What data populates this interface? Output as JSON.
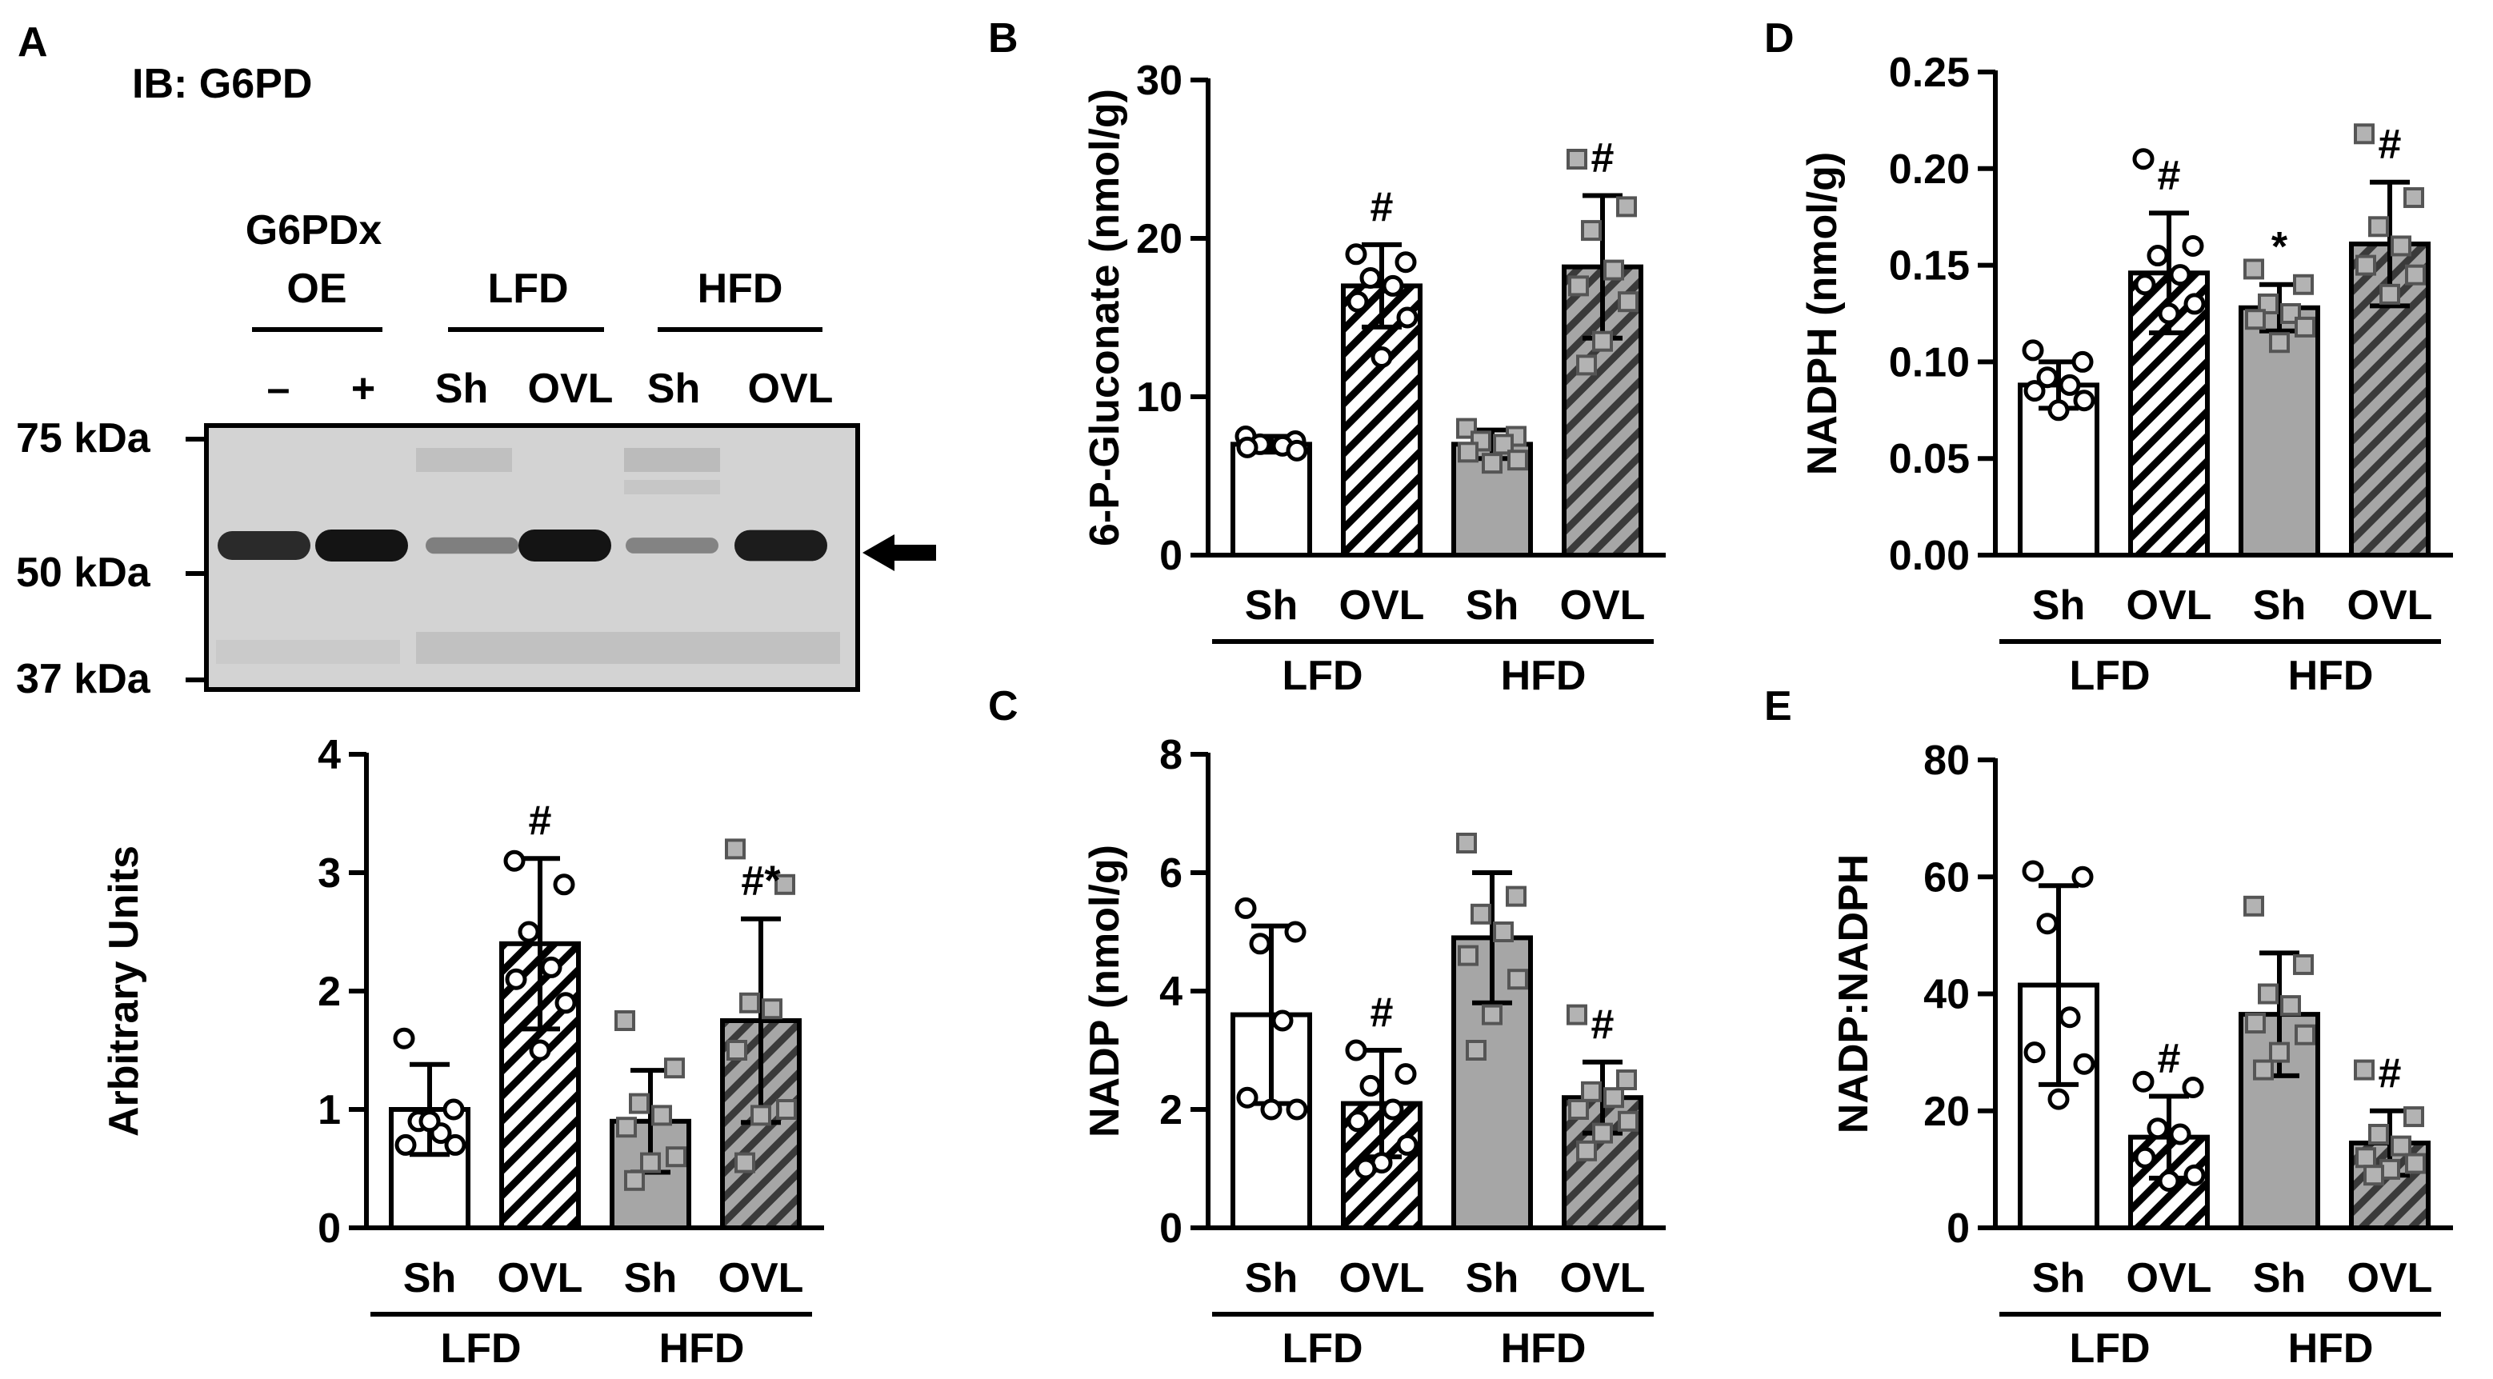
{
  "colors": {
    "ink": "#000000",
    "white_bar": "#ffffff",
    "gray_bar": "#a6a6a6",
    "gray_marker": "#b3b3b3",
    "blot_background": "#d3d3d3",
    "blot_band": "#141414"
  },
  "panel_a": {
    "label": "A",
    "blot_title": "IB: G6PD",
    "oe_header_line1": "G6PDx",
    "oe_header_line2": "OE",
    "lane_groups": [
      "LFD",
      "HFD"
    ],
    "lane_labels": [
      "–",
      "+",
      "Sh",
      "OVL",
      "Sh",
      "OVL"
    ],
    "ladder": [
      "75 kDa",
      "50 kDa",
      "37 kDa"
    ],
    "target_band_arrow": "arrow-icon",
    "band_intensity": [
      0.85,
      1.0,
      0.25,
      1.0,
      0.22,
      0.95
    ]
  },
  "chart_data": [
    {
      "panel": "A",
      "type": "bar",
      "ylabel": "Arbitrary Units",
      "ylim": [
        0,
        4
      ],
      "yticks": [
        "0",
        "1",
        "2",
        "3",
        "4"
      ],
      "categories": [
        "Sh",
        "OVL",
        "Sh",
        "OVL"
      ],
      "groups": [
        "LFD",
        "HFD"
      ],
      "values": [
        1.0,
        2.4,
        0.9,
        1.75
      ],
      "sd": [
        0.38,
        0.72,
        0.43,
        0.86
      ],
      "annotations": [
        "",
        "#",
        "",
        "#*"
      ],
      "points": [
        [
          1.6,
          1.0,
          0.9,
          0.8,
          0.7,
          0.7,
          0.9
        ],
        [
          3.1,
          2.9,
          2.5,
          2.2,
          2.1,
          1.9,
          1.5
        ],
        [
          1.75,
          1.35,
          1.05,
          0.95,
          0.85,
          0.6,
          0.55,
          0.4
        ],
        [
          3.2,
          2.9,
          1.9,
          1.85,
          1.5,
          1.0,
          0.95,
          0.55
        ]
      ]
    },
    {
      "panel": "B",
      "type": "bar",
      "ylabel": "6-P-Gluconate (nmol/g)",
      "ylim": [
        0,
        30
      ],
      "yticks": [
        "0",
        "10",
        "20",
        "30"
      ],
      "categories": [
        "Sh",
        "OVL",
        "Sh",
        "OVL"
      ],
      "groups": [
        "LFD",
        "HFD"
      ],
      "values": [
        7.0,
        17.0,
        7.0,
        18.2
      ],
      "sd": [
        0.5,
        2.6,
        0.9,
        4.5
      ],
      "annotations": [
        "",
        "#",
        "",
        "#"
      ],
      "points": [
        [
          7.5,
          7.2,
          7.0,
          6.9,
          6.8,
          6.6
        ],
        [
          19.0,
          18.5,
          17.5,
          17.0,
          16.0,
          15.0,
          12.5
        ],
        [
          8.0,
          7.5,
          7.2,
          7.0,
          6.5,
          6.0,
          5.8
        ],
        [
          25.0,
          22.0,
          20.5,
          18.0,
          17.0,
          16.0,
          13.5,
          12.0
        ]
      ]
    },
    {
      "panel": "C",
      "type": "bar",
      "ylabel": "NADP (nmol/g)",
      "ylim": [
        0,
        8
      ],
      "yticks": [
        "0",
        "2",
        "4",
        "6",
        "8"
      ],
      "categories": [
        "Sh",
        "OVL",
        "Sh",
        "OVL"
      ],
      "groups": [
        "LFD",
        "HFD"
      ],
      "values": [
        3.6,
        2.1,
        4.9,
        2.2
      ],
      "sd": [
        1.5,
        0.9,
        1.1,
        0.6
      ],
      "annotations": [
        "",
        "#",
        "",
        "#"
      ],
      "points": [
        [
          5.4,
          5.0,
          4.8,
          3.5,
          2.2,
          2.0,
          2.0
        ],
        [
          3.0,
          2.6,
          2.4,
          2.0,
          1.8,
          1.4,
          1.1,
          1.0
        ],
        [
          6.5,
          5.6,
          5.3,
          5.0,
          4.6,
          4.2,
          3.6,
          3.0
        ],
        [
          3.6,
          2.5,
          2.3,
          2.2,
          2.0,
          1.8,
          1.6,
          1.3
        ]
      ]
    },
    {
      "panel": "D",
      "type": "bar",
      "ylabel": "NADPH (nmol/g)",
      "ylim": [
        0,
        0.25
      ],
      "yticks": [
        "0.00",
        "0.05",
        "0.10",
        "0.15",
        "0.20",
        "0.25"
      ],
      "categories": [
        "Sh",
        "OVL",
        "Sh",
        "OVL"
      ],
      "groups": [
        "LFD",
        "HFD"
      ],
      "values": [
        0.088,
        0.146,
        0.128,
        0.161
      ],
      "sd": [
        0.012,
        0.031,
        0.012,
        0.032
      ],
      "annotations": [
        "",
        "#",
        "*",
        "#"
      ],
      "points": [
        [
          0.106,
          0.1,
          0.092,
          0.088,
          0.085,
          0.08,
          0.075
        ],
        [
          0.205,
          0.16,
          0.155,
          0.145,
          0.14,
          0.13,
          0.125
        ],
        [
          0.148,
          0.14,
          0.13,
          0.125,
          0.122,
          0.118,
          0.11
        ],
        [
          0.218,
          0.185,
          0.17,
          0.16,
          0.15,
          0.145,
          0.135
        ]
      ]
    },
    {
      "panel": "E",
      "type": "bar",
      "ylabel": "NADP:NADPH",
      "ylim": [
        0,
        80
      ],
      "yticks": [
        "0",
        "20",
        "40",
        "60",
        "80"
      ],
      "categories": [
        "Sh",
        "OVL",
        "Sh",
        "OVL"
      ],
      "groups": [
        "LFD",
        "HFD"
      ],
      "values": [
        41.5,
        15.5,
        36.5,
        14.5
      ],
      "sd": [
        17.0,
        7.0,
        10.5,
        5.5
      ],
      "annotations": [
        "",
        "#",
        "",
        "#"
      ],
      "points": [
        [
          61.0,
          60.0,
          52.0,
          36.0,
          30.0,
          28.0,
          22.0
        ],
        [
          25.0,
          24.0,
          17.0,
          16.0,
          12.0,
          9.0,
          8.0
        ],
        [
          55.0,
          45.0,
          40.0,
          38.0,
          35.0,
          33.0,
          30.0,
          27.0
        ],
        [
          27.0,
          19.0,
          16.0,
          14.0,
          12.0,
          11.0,
          10.0,
          9.0
        ]
      ]
    }
  ]
}
